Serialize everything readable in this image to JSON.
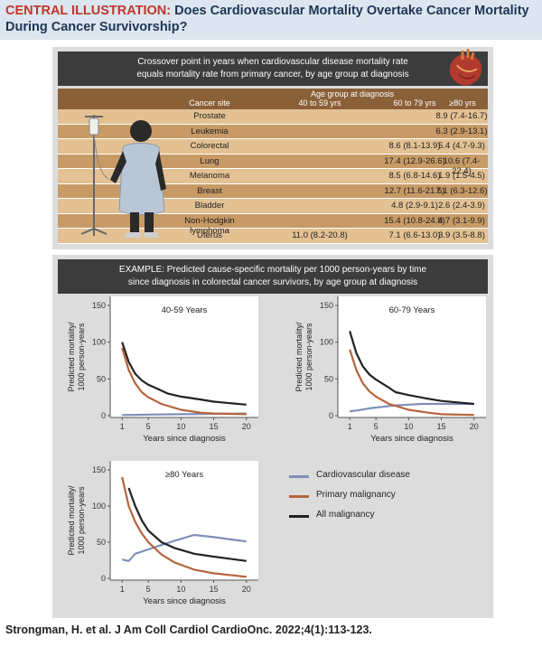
{
  "banner": {
    "lead": "CENTRAL ILLUSTRATION:",
    "title": "Does Cardiovascular Mortality Overtake Cancer Mortality During Cancer Survivorship?"
  },
  "table": {
    "header_line1": "Crossover point in years when cardiovascular disease mortality rate",
    "header_line2": "equals mortality rate from primary cancer, by age group at diagnosis",
    "age_caption": "Age group at diagnosis",
    "columns": [
      "Cancer site",
      "40 to 59 yrs",
      "60 to 79 yrs",
      "≥80 yrs"
    ],
    "rows": [
      [
        "Prostate",
        "",
        "",
        "8.9 (7.4-16.7)"
      ],
      [
        "Leukemia",
        "",
        "",
        "6.3 (2.9-13.1)"
      ],
      [
        "Colorectal",
        "",
        "8.6 (8.1-13.9)",
        "5.4 (4.7-9.3)"
      ],
      [
        "Lung",
        "",
        "17.4 (12.9-26.6)",
        "10.6 (7.4-22.4)"
      ],
      [
        "Melanoma",
        "",
        "8.5 (6.8-14.6)",
        "1.9 (1.5-4.5)"
      ],
      [
        "Breast",
        "",
        "12.7 (11.6-21.6)",
        "7.1 (6.3-12.6)"
      ],
      [
        "Bladder",
        "",
        "4.8 (2.9-9.1)",
        "2.6 (2.4-3.9)"
      ],
      [
        "Non-Hodgkin lymphoma",
        "",
        "15.4 (10.8-24.8)",
        "4.7 (3.1-9.9)"
      ],
      [
        "Uterus",
        "11.0 (8.2-20.8)",
        "7.1 (6.6-13.0)",
        "3.9 (3.5-8.8)"
      ]
    ]
  },
  "example": {
    "header_line1": "EXAMPLE:  Predicted cause-specific mortality per 1000 person-years by time",
    "header_line2": "since diagnosis in colorectal cancer survivors, by age group at diagnosis"
  },
  "legend": [
    {
      "name": "Cardiovascular disease",
      "color": "#7f8fb8"
    },
    {
      "name": "Primary malignancy",
      "color": "#b5633a"
    },
    {
      "name": "All malignancy",
      "color": "#222222"
    }
  ],
  "chart_data": [
    {
      "type": "line",
      "title": "40-59 Years",
      "xlabel": "Years since diagnosis",
      "ylabel_line1": "Predicted mortality/",
      "ylabel_line2": "1000 person-years",
      "xlim": [
        0,
        21
      ],
      "ylim": [
        0,
        150
      ],
      "xticks": [
        1,
        5,
        10,
        15,
        20
      ],
      "yticks": [
        0,
        50,
        100,
        150
      ],
      "series": [
        {
          "name": "Cardiovascular disease",
          "points": [
            [
              1,
              1
            ],
            [
              2,
              1
            ],
            [
              5,
              1.5
            ],
            [
              10,
              2
            ],
            [
              15,
              2.5
            ],
            [
              20,
              3
            ]
          ]
        },
        {
          "name": "Primary malignancy",
          "points": [
            [
              1,
              92
            ],
            [
              2,
              62
            ],
            [
              3,
              44
            ],
            [
              4,
              32
            ],
            [
              5,
              25
            ],
            [
              7,
              16
            ],
            [
              10,
              8
            ],
            [
              13,
              4
            ],
            [
              15,
              3
            ],
            [
              20,
              2
            ]
          ]
        },
        {
          "name": "All malignancy",
          "points": [
            [
              1,
              100
            ],
            [
              2,
              73
            ],
            [
              3,
              57
            ],
            [
              4,
              48
            ],
            [
              5,
              42
            ],
            [
              7,
              34
            ],
            [
              8,
              30
            ],
            [
              10,
              26
            ],
            [
              13,
              22
            ],
            [
              15,
              19
            ],
            [
              20,
              15
            ]
          ]
        }
      ]
    },
    {
      "type": "line",
      "title": "60-79 Years",
      "xlabel": "Years since diagnosis",
      "ylabel_line1": "Predicted mortality/",
      "ylabel_line2": "1000 person-years",
      "xlim": [
        0,
        21
      ],
      "ylim": [
        0,
        150
      ],
      "xticks": [
        1,
        5,
        10,
        15,
        20
      ],
      "yticks": [
        0,
        50,
        100,
        150
      ],
      "series": [
        {
          "name": "Cardiovascular disease",
          "points": [
            [
              1,
              6
            ],
            [
              2,
              7
            ],
            [
              4,
              10
            ],
            [
              6,
              12
            ],
            [
              8,
              14
            ],
            [
              10,
              15
            ],
            [
              12,
              16
            ],
            [
              15,
              16
            ],
            [
              20,
              16
            ]
          ]
        },
        {
          "name": "Primary malignancy",
          "points": [
            [
              1,
              90
            ],
            [
              2,
              62
            ],
            [
              3,
              44
            ],
            [
              4,
              33
            ],
            [
              5,
              26
            ],
            [
              7,
              16
            ],
            [
              10,
              8
            ],
            [
              13,
              4
            ],
            [
              15,
              2
            ],
            [
              20,
              1
            ]
          ]
        },
        {
          "name": "All malignancy",
          "points": [
            [
              1,
              115
            ],
            [
              2,
              85
            ],
            [
              3,
              67
            ],
            [
              4,
              56
            ],
            [
              5,
              49
            ],
            [
              7,
              38
            ],
            [
              8,
              32
            ],
            [
              10,
              28
            ],
            [
              13,
              23
            ],
            [
              15,
              20
            ],
            [
              20,
              16
            ]
          ]
        }
      ]
    },
    {
      "type": "line",
      "title": "≥80 Years",
      "xlabel": "Years since diagnosis",
      "ylabel_line1": "Predicted mortality/",
      "ylabel_line2": "1000 person-years",
      "xlim": [
        0,
        21
      ],
      "ylim": [
        0,
        150
      ],
      "xticks": [
        1,
        5,
        10,
        15,
        20
      ],
      "yticks": [
        0,
        50,
        100,
        150
      ],
      "series": [
        {
          "name": "Cardiovascular disease",
          "points": [
            [
              1,
              26
            ],
            [
              2,
              24
            ],
            [
              3,
              34
            ],
            [
              5,
              40
            ],
            [
              7,
              46
            ],
            [
              9,
              52
            ],
            [
              12,
              60
            ],
            [
              15,
              57
            ],
            [
              20,
              51
            ]
          ]
        },
        {
          "name": "Primary malignancy",
          "points": [
            [
              1,
              140
            ],
            [
              2,
              100
            ],
            [
              3,
              78
            ],
            [
              4,
              62
            ],
            [
              5,
              50
            ],
            [
              7,
              33
            ],
            [
              9,
              22
            ],
            [
              12,
              12
            ],
            [
              15,
              7
            ],
            [
              20,
              2
            ]
          ]
        },
        {
          "name": "All malignancy",
          "points": [
            [
              2,
              125
            ],
            [
              3,
              100
            ],
            [
              4,
              80
            ],
            [
              5,
              66
            ],
            [
              7,
              50
            ],
            [
              9,
              42
            ],
            [
              12,
              34
            ],
            [
              15,
              30
            ],
            [
              20,
              24
            ]
          ]
        }
      ]
    }
  ],
  "footer": "Strongman, H. et al. J Am Coll Cardiol CardioOnc. 2022;4(1):113-123."
}
